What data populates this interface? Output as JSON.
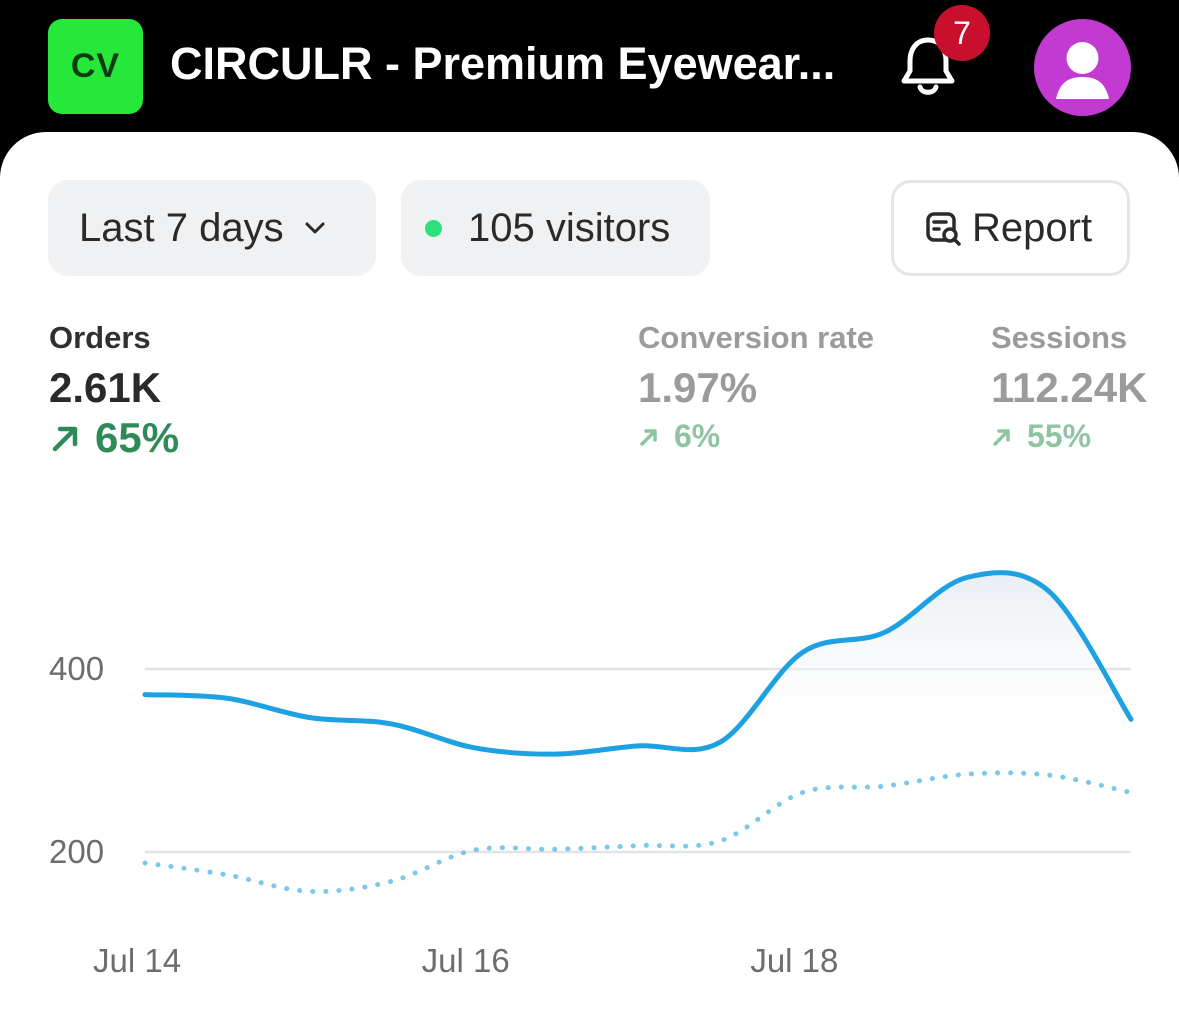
{
  "header": {
    "store_initials": "CV",
    "store_name": "CIRCULR - Premium Eyewear...",
    "notification_count": "7",
    "badge_color": "#25e83a",
    "avatar_color": "#c23ad1"
  },
  "filters": {
    "range_label": "Last 7 days",
    "visitors_label": "105 visitors",
    "report_label": "Report"
  },
  "metrics": [
    {
      "label": "Orders",
      "value": "2.61K",
      "delta": "65%"
    },
    {
      "label": "Conversion rate",
      "value": "1.97%",
      "delta": "6%"
    },
    {
      "label": "Sessions",
      "value": "112.24K",
      "delta": "55%"
    }
  ],
  "chart_data": {
    "type": "line",
    "x_labels": [
      "Jul 14",
      "Jul 16",
      "Jul 18"
    ],
    "x": [
      0,
      0.5,
      1,
      1.5,
      2,
      2.5,
      3,
      3.5,
      4,
      4.5,
      5,
      5.5,
      6
    ],
    "yticks": [
      200,
      400
    ],
    "ylim": [
      150,
      560
    ],
    "series": [
      {
        "style": "solid",
        "color": "#1da1e2",
        "values": [
          372,
          368,
          347,
          340,
          314,
          307,
          316,
          320,
          418,
          440,
          500,
          485,
          345
        ]
      },
      {
        "style": "dotted",
        "color": "#7cc8ea",
        "values": [
          188,
          175,
          157,
          168,
          202,
          203,
          207,
          212,
          265,
          272,
          285,
          284,
          265
        ]
      }
    ]
  }
}
